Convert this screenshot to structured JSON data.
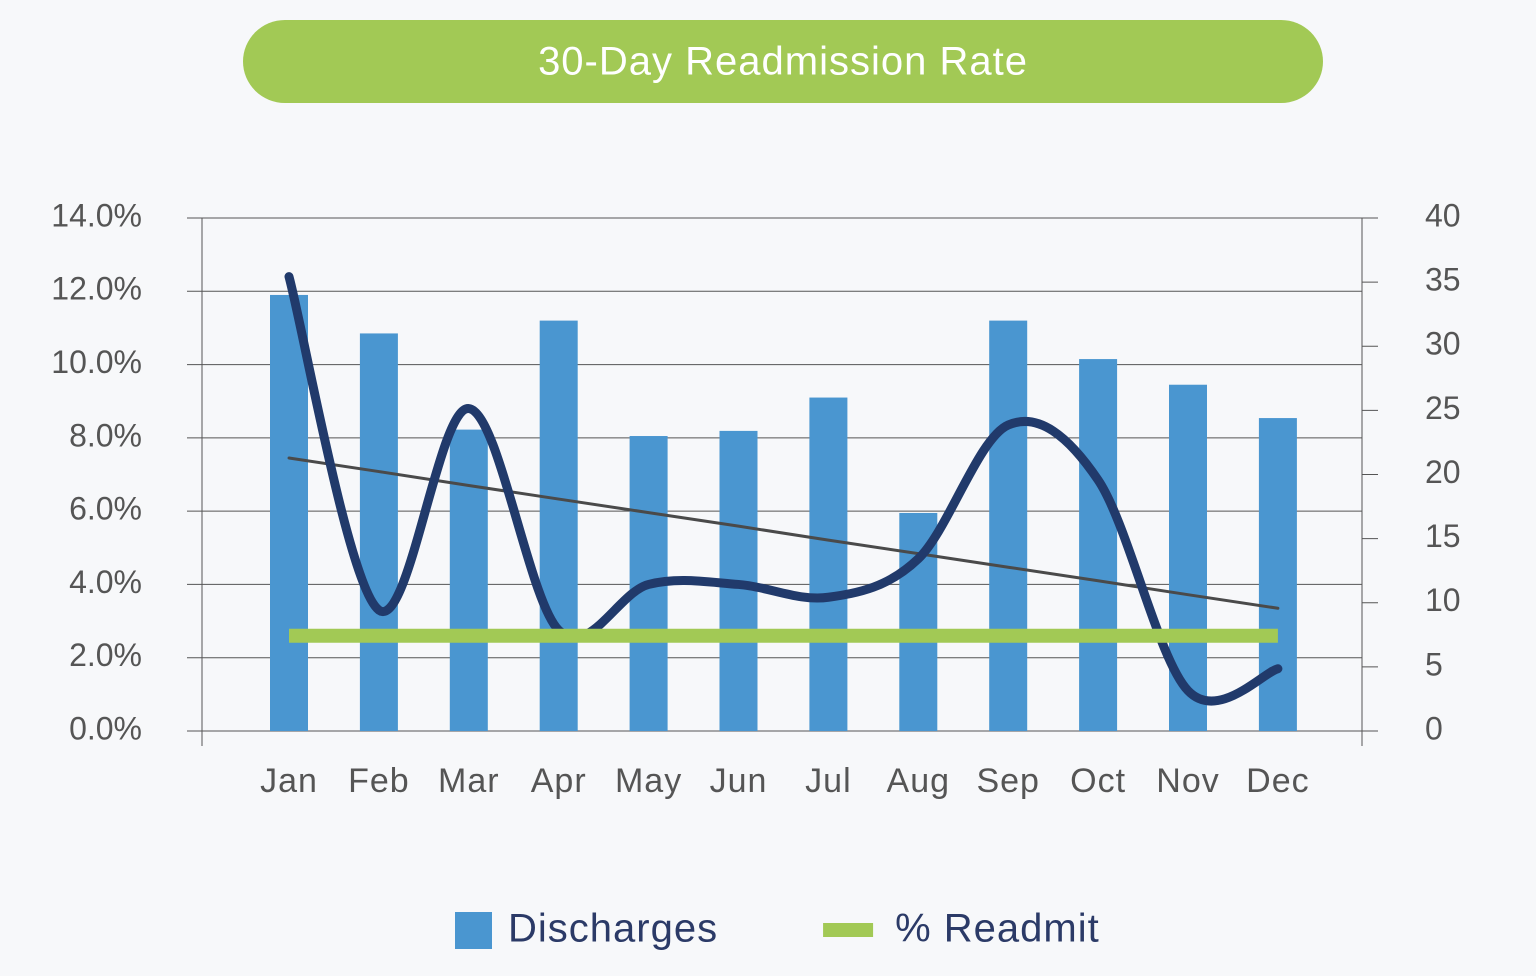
{
  "chart_data": {
    "type": "bar",
    "title": "30-Day Readmission Rate",
    "categories": [
      "Jan",
      "Feb",
      "Mar",
      "Apr",
      "May",
      "Jun",
      "Jul",
      "Aug",
      "Sep",
      "Oct",
      "Nov",
      "Dec"
    ],
    "series": [
      {
        "name": "Discharges",
        "type": "bar",
        "axis": "y2",
        "color": "#4a96d0",
        "values": [
          34,
          31,
          23.5,
          32,
          23,
          23.4,
          26,
          17,
          32,
          29,
          27,
          24.4
        ]
      },
      {
        "type": "line",
        "smooth": true,
        "color": "#213a6b",
        "values": [
          12.4,
          3.3,
          8.8,
          2.75,
          4.0,
          4.0,
          3.65,
          4.7,
          8.35,
          6.85,
          1.1,
          1.7
        ]
      },
      {
        "type": "line",
        "color": "#4a4a4a",
        "values": [
          7.45,
          7.08,
          6.7,
          6.33,
          5.96,
          5.59,
          5.21,
          4.84,
          4.47,
          4.1,
          3.72,
          3.35
        ]
      },
      {
        "name": "% Readmit",
        "type": "line",
        "color": "#a2c955",
        "values": [
          2.6,
          2.6,
          2.6,
          2.6,
          2.6,
          2.6,
          2.6,
          2.6,
          2.6,
          2.6,
          2.6,
          2.6
        ]
      }
    ],
    "ylim": [
      0,
      14
    ],
    "yticks": [
      {
        "value": 0,
        "label": "0.0%"
      },
      {
        "value": 2,
        "label": "2.0%"
      },
      {
        "value": 4,
        "label": "4.0%"
      },
      {
        "value": 6,
        "label": "6.0%"
      },
      {
        "value": 8,
        "label": "8.0%"
      },
      {
        "value": 10,
        "label": "10.0%"
      },
      {
        "value": 12,
        "label": "12.0%"
      },
      {
        "value": 14,
        "label": "14.0%"
      }
    ],
    "y2lim": [
      0,
      40
    ],
    "y2ticks": [
      0,
      5,
      10,
      15,
      20,
      25,
      30,
      35,
      40
    ],
    "grid": true,
    "legend": "bottom"
  }
}
